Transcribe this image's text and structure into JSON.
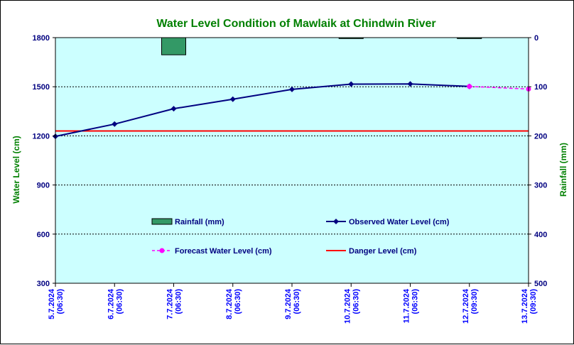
{
  "chart_data": {
    "type": "line",
    "title": "Water Level Condition of Mawlaik at Chindwin River",
    "ylabel": "Water Level (cm)",
    "y2label": "Rainfall (mm)",
    "ylim": [
      300,
      1800
    ],
    "y_ticks": [
      "1800",
      "1500",
      "1200",
      "900",
      "600",
      "300"
    ],
    "y2lim": [
      0,
      500
    ],
    "y2_inverted": true,
    "y2_ticks": [
      "0",
      "100",
      "200",
      "300",
      "400",
      "500"
    ],
    "grid": "horizontal dashed",
    "categories": [
      [
        "5.7.2024",
        "(06:30)"
      ],
      [
        "6.7.2024",
        "(06:30)"
      ],
      [
        "7.7.2024",
        "(06:30)"
      ],
      [
        "8.7.2024",
        "(06:30)"
      ],
      [
        "9.7.2024",
        "(06:30)"
      ],
      [
        "10.7.2024",
        "(06:30)"
      ],
      [
        "11.7.2024",
        "(06:30)"
      ],
      [
        "12.7.2024",
        "(09:30)"
      ],
      [
        "13.7.2024",
        "(09:30)"
      ]
    ],
    "series": [
      {
        "name": "Rainfall (mm)",
        "kind": "bar",
        "axis": "right",
        "color": "#339966",
        "values": [
          0,
          0,
          35,
          0,
          0,
          2,
          0,
          2,
          0
        ]
      },
      {
        "name": "Observed Water Level (cm)",
        "kind": "line",
        "axis": "left",
        "color": "#000080",
        "values": [
          1197,
          1272,
          1366,
          1424,
          1484,
          1516,
          1517,
          1502,
          null
        ]
      },
      {
        "name": "Forecast Water Level (cm)",
        "kind": "dashed-line",
        "axis": "left",
        "color": "#ff00ff",
        "values": [
          null,
          null,
          null,
          null,
          null,
          null,
          null,
          1502,
          1486
        ]
      },
      {
        "name": "Danger Level (cm)",
        "kind": "hline",
        "axis": "left",
        "color": "#ff0000",
        "value": 1230
      }
    ],
    "legend_order": [
      "Rainfall (mm)",
      "Observed Water Level (cm)",
      "Forecast Water Level (cm)",
      "Danger Level (cm)"
    ],
    "colors": {
      "plot_background": "#ccffff",
      "title": "#008000",
      "axis_text": "#000080",
      "axis_title": "#008000"
    }
  }
}
